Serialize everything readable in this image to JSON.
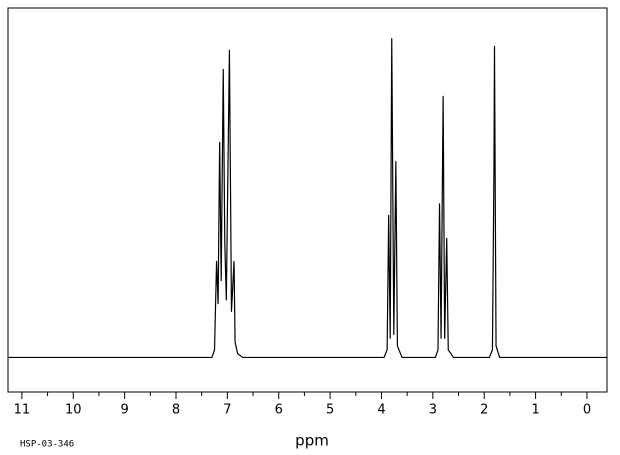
{
  "chart_data": {
    "type": "line",
    "x_label": "ppm",
    "annotation": "HSP-03-346",
    "x": [
      11.27,
      7.3,
      7.25,
      7.21,
      7.18,
      7.15,
      7.12,
      7.08,
      7.05,
      7.02,
      6.96,
      6.92,
      6.87,
      6.85,
      6.8,
      6.7,
      3.95,
      3.89,
      3.86,
      3.83,
      3.8,
      3.76,
      3.72,
      3.69,
      3.6,
      2.95,
      2.9,
      2.87,
      2.84,
      2.8,
      2.77,
      2.73,
      2.7,
      2.6,
      1.9,
      1.84,
      1.81,
      1.8,
      1.77,
      1.7,
      -0.39
    ],
    "values": [
      0,
      0,
      2,
      25,
      14,
      56,
      20,
      75,
      30,
      15,
      80,
      12,
      25,
      4,
      1,
      0,
      0,
      2,
      37,
      5,
      83,
      6,
      51,
      3,
      0,
      0,
      2,
      40,
      5,
      68,
      5,
      31,
      2,
      0,
      0,
      2,
      50,
      81,
      3,
      0,
      0
    ],
    "color": "#000000",
    "xlim": [
      11.27,
      -0.39
    ],
    "ylim": [
      -9,
      91
    ],
    "xticks": [
      11,
      10,
      9,
      8,
      7,
      6,
      5,
      4,
      3,
      2,
      1,
      0
    ],
    "xminorticks": [
      10.5,
      9.5,
      8.5,
      7.5,
      6.5,
      5.5,
      4.5,
      3.5,
      2.5,
      1.5,
      0.5
    ]
  }
}
